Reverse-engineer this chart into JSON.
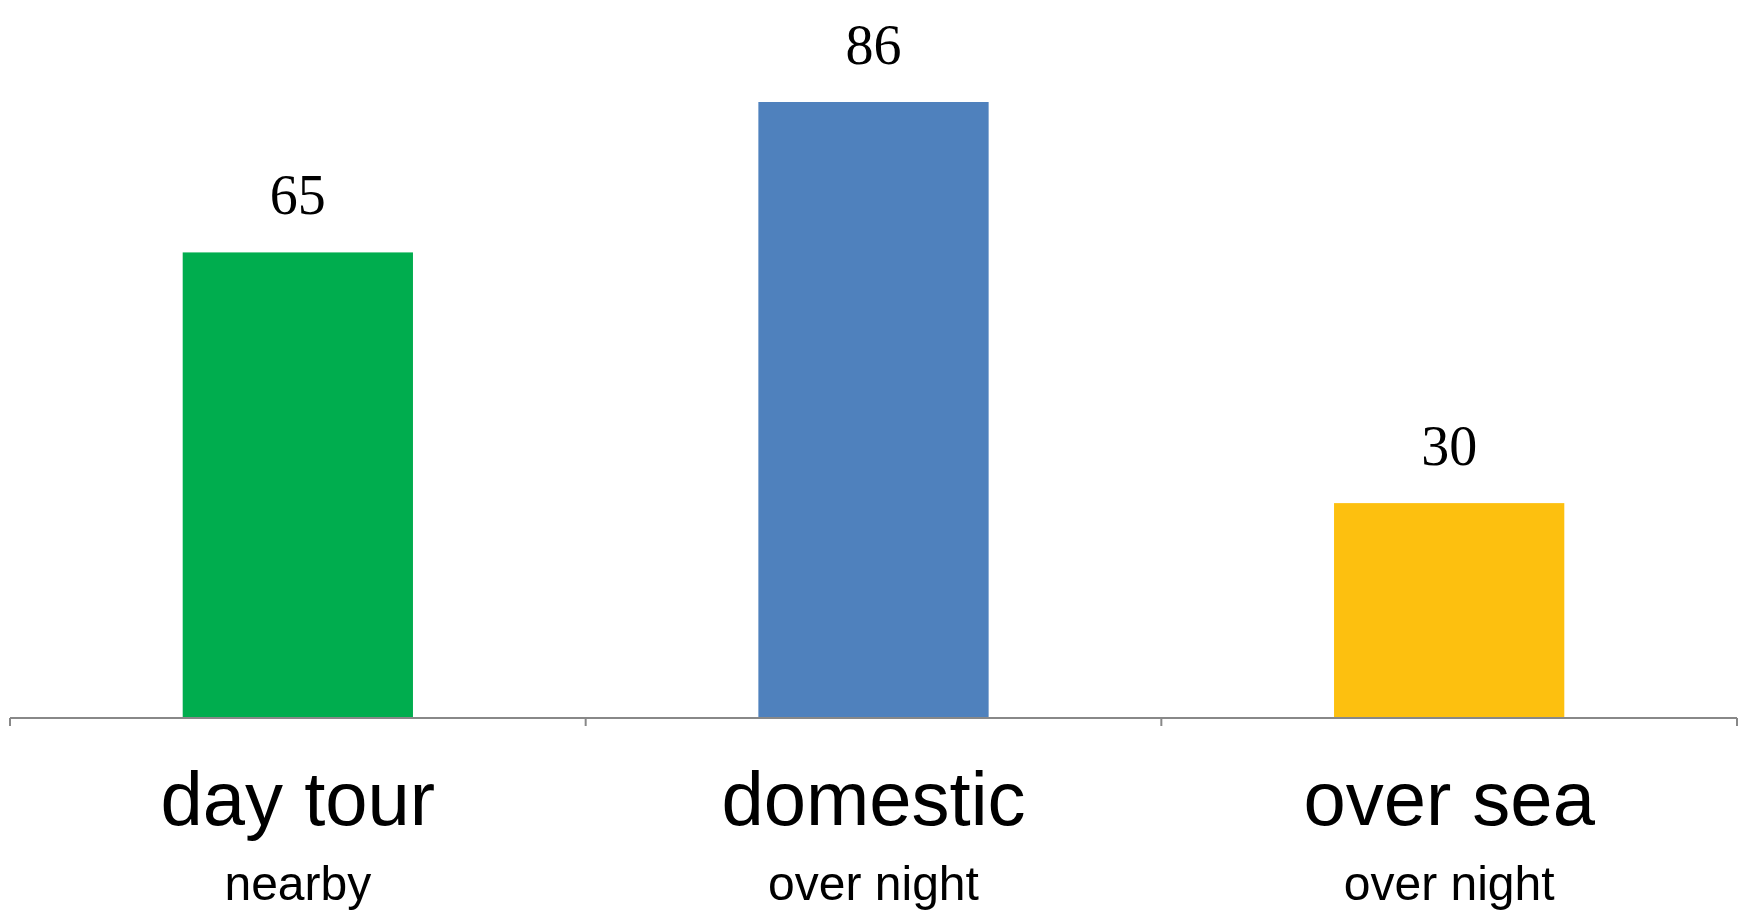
{
  "chart_data": {
    "type": "bar",
    "categories": [
      "day tour\nnearby",
      "domestic\nover night",
      "over sea\nover night"
    ],
    "values": [
      65,
      86,
      30
    ],
    "colors": [
      "#00ad4e",
      "#4f81bd",
      "#fdc00f"
    ],
    "data_labels": true
  }
}
